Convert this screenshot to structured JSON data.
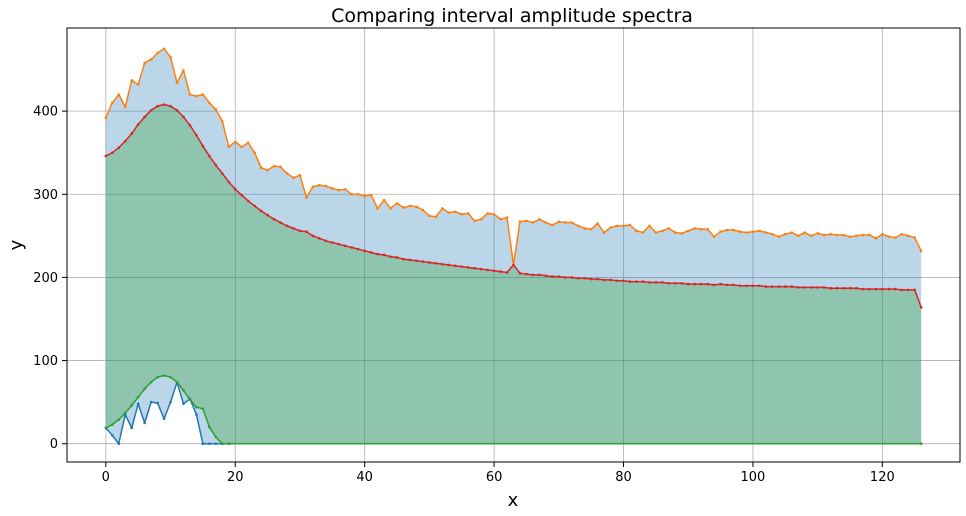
{
  "chart_data": {
    "type": "area",
    "title": "Comparing interval amplitude spectra",
    "xlabel": "x",
    "ylabel": "y",
    "xlim": [
      -6,
      132
    ],
    "ylim": [
      -22,
      500
    ],
    "xticks": [
      0,
      20,
      40,
      60,
      80,
      100,
      120
    ],
    "yticks": [
      0,
      100,
      200,
      300,
      400
    ],
    "grid": true,
    "fills": [
      {
        "between": [
          "orange",
          "blue"
        ],
        "color": "#1f77b4",
        "alpha": 0.3
      },
      {
        "between": [
          "red",
          "green"
        ],
        "color": "#2ca02c",
        "alpha": 0.3
      }
    ],
    "series": [
      {
        "color": "#ff7f0e",
        "points": [
          [
            0,
            392
          ],
          [
            1,
            410
          ],
          [
            2,
            420
          ],
          [
            3,
            405
          ],
          [
            4,
            437
          ],
          [
            5,
            432
          ],
          [
            6,
            458
          ],
          [
            7,
            462
          ],
          [
            8,
            470
          ],
          [
            9,
            475
          ],
          [
            10,
            465
          ],
          [
            11,
            434
          ],
          [
            12,
            449
          ],
          [
            13,
            420
          ],
          [
            14,
            418
          ],
          [
            15,
            420
          ],
          [
            16,
            410
          ],
          [
            17,
            402
          ],
          [
            18,
            388
          ],
          [
            19,
            357
          ],
          [
            20,
            363
          ],
          [
            21,
            357
          ],
          [
            22,
            362
          ],
          [
            23,
            350
          ],
          [
            24,
            332
          ],
          [
            25,
            329
          ],
          [
            26,
            334
          ],
          [
            27,
            333
          ],
          [
            28,
            325
          ],
          [
            29,
            320
          ],
          [
            30,
            323
          ],
          [
            31,
            296
          ],
          [
            32,
            309
          ],
          [
            33,
            311
          ],
          [
            34,
            310
          ],
          [
            35,
            307
          ],
          [
            36,
            305
          ],
          [
            37,
            306
          ],
          [
            38,
            300
          ],
          [
            39,
            300
          ],
          [
            40,
            298
          ],
          [
            41,
            299
          ],
          [
            42,
            283
          ],
          [
            43,
            293
          ],
          [
            44,
            283
          ],
          [
            45,
            289
          ],
          [
            46,
            284
          ],
          [
            47,
            286
          ],
          [
            48,
            285
          ],
          [
            49,
            281
          ],
          [
            50,
            274
          ],
          [
            51,
            273
          ],
          [
            52,
            283
          ],
          [
            53,
            278
          ],
          [
            54,
            279
          ],
          [
            55,
            276
          ],
          [
            56,
            277
          ],
          [
            57,
            268
          ],
          [
            58,
            270
          ],
          [
            59,
            277
          ],
          [
            60,
            276
          ],
          [
            61,
            270
          ],
          [
            62,
            272
          ],
          [
            63,
            215
          ],
          [
            64,
            267
          ],
          [
            65,
            268
          ],
          [
            66,
            266
          ],
          [
            67,
            270
          ],
          [
            68,
            266
          ],
          [
            69,
            263
          ],
          [
            70,
            267
          ],
          [
            71,
            266
          ],
          [
            72,
            266
          ],
          [
            73,
            262
          ],
          [
            74,
            259
          ],
          [
            75,
            258
          ],
          [
            76,
            265
          ],
          [
            77,
            254
          ],
          [
            78,
            260
          ],
          [
            79,
            262
          ],
          [
            80,
            262
          ],
          [
            81,
            263
          ],
          [
            82,
            256
          ],
          [
            83,
            254
          ],
          [
            84,
            262
          ],
          [
            85,
            254
          ],
          [
            86,
            256
          ],
          [
            87,
            259
          ],
          [
            88,
            254
          ],
          [
            89,
            253
          ],
          [
            90,
            256
          ],
          [
            91,
            259
          ],
          [
            92,
            258
          ],
          [
            93,
            258
          ],
          [
            94,
            249
          ],
          [
            95,
            255
          ],
          [
            96,
            257
          ],
          [
            97,
            257
          ],
          [
            98,
            255
          ],
          [
            99,
            254
          ],
          [
            100,
            255
          ],
          [
            101,
            256
          ],
          [
            102,
            254
          ],
          [
            103,
            252
          ],
          [
            104,
            249
          ],
          [
            105,
            252
          ],
          [
            106,
            254
          ],
          [
            107,
            250
          ],
          [
            108,
            254
          ],
          [
            109,
            250
          ],
          [
            110,
            253
          ],
          [
            111,
            251
          ],
          [
            112,
            252
          ],
          [
            113,
            251
          ],
          [
            114,
            251
          ],
          [
            115,
            249
          ],
          [
            116,
            250
          ],
          [
            117,
            251
          ],
          [
            118,
            251
          ],
          [
            119,
            247
          ],
          [
            120,
            252
          ],
          [
            121,
            249
          ],
          [
            122,
            248
          ],
          [
            123,
            252
          ],
          [
            124,
            250
          ],
          [
            125,
            248
          ],
          [
            126,
            232
          ]
        ]
      },
      {
        "color": "#d62728",
        "points": [
          [
            0,
            346
          ],
          [
            1,
            350
          ],
          [
            2,
            356
          ],
          [
            3,
            364
          ],
          [
            4,
            373
          ],
          [
            5,
            384
          ],
          [
            6,
            393
          ],
          [
            7,
            401
          ],
          [
            8,
            406
          ],
          [
            9,
            408
          ],
          [
            10,
            406
          ],
          [
            11,
            401
          ],
          [
            12,
            393
          ],
          [
            13,
            383
          ],
          [
            14,
            371
          ],
          [
            15,
            358
          ],
          [
            16,
            346
          ],
          [
            17,
            335
          ],
          [
            18,
            325
          ],
          [
            19,
            315
          ],
          [
            20,
            306
          ],
          [
            21,
            299
          ],
          [
            22,
            292
          ],
          [
            23,
            286
          ],
          [
            24,
            280
          ],
          [
            25,
            275
          ],
          [
            26,
            270
          ],
          [
            27,
            266
          ],
          [
            28,
            262
          ],
          [
            29,
            259
          ],
          [
            30,
            256
          ],
          [
            31,
            255
          ],
          [
            32,
            250
          ],
          [
            33,
            247
          ],
          [
            34,
            244
          ],
          [
            35,
            242
          ],
          [
            36,
            240
          ],
          [
            37,
            238
          ],
          [
            38,
            236
          ],
          [
            39,
            234
          ],
          [
            40,
            232
          ],
          [
            41,
            230
          ],
          [
            42,
            228
          ],
          [
            43,
            227
          ],
          [
            44,
            225
          ],
          [
            45,
            224
          ],
          [
            46,
            222
          ],
          [
            47,
            221
          ],
          [
            48,
            220
          ],
          [
            49,
            219
          ],
          [
            50,
            218
          ],
          [
            51,
            217
          ],
          [
            52,
            216
          ],
          [
            53,
            215
          ],
          [
            54,
            214
          ],
          [
            55,
            213
          ],
          [
            56,
            212
          ],
          [
            57,
            211
          ],
          [
            58,
            210
          ],
          [
            59,
            209
          ],
          [
            60,
            208
          ],
          [
            61,
            207
          ],
          [
            62,
            206
          ],
          [
            63,
            215
          ],
          [
            64,
            205
          ],
          [
            65,
            204
          ],
          [
            66,
            203
          ],
          [
            67,
            203
          ],
          [
            68,
            202
          ],
          [
            69,
            201
          ],
          [
            70,
            201
          ],
          [
            71,
            200
          ],
          [
            72,
            200
          ],
          [
            73,
            199
          ],
          [
            74,
            199
          ],
          [
            75,
            198
          ],
          [
            76,
            198
          ],
          [
            77,
            197
          ],
          [
            78,
            197
          ],
          [
            79,
            196
          ],
          [
            80,
            196
          ],
          [
            81,
            195
          ],
          [
            82,
            195
          ],
          [
            83,
            195
          ],
          [
            84,
            194
          ],
          [
            85,
            194
          ],
          [
            86,
            194
          ],
          [
            87,
            193
          ],
          [
            88,
            193
          ],
          [
            89,
            193
          ],
          [
            90,
            192
          ],
          [
            91,
            192
          ],
          [
            92,
            192
          ],
          [
            93,
            192
          ],
          [
            94,
            191
          ],
          [
            95,
            192
          ],
          [
            96,
            191
          ],
          [
            97,
            191
          ],
          [
            98,
            190
          ],
          [
            99,
            190
          ],
          [
            100,
            190
          ],
          [
            101,
            190
          ],
          [
            102,
            189
          ],
          [
            103,
            189
          ],
          [
            104,
            189
          ],
          [
            105,
            189
          ],
          [
            106,
            189
          ],
          [
            107,
            188
          ],
          [
            108,
            188
          ],
          [
            109,
            188
          ],
          [
            110,
            188
          ],
          [
            111,
            188
          ],
          [
            112,
            187
          ],
          [
            113,
            187
          ],
          [
            114,
            187
          ],
          [
            115,
            187
          ],
          [
            116,
            187
          ],
          [
            117,
            186
          ],
          [
            118,
            186
          ],
          [
            119,
            186
          ],
          [
            120,
            186
          ],
          [
            121,
            186
          ],
          [
            122,
            186
          ],
          [
            123,
            185
          ],
          [
            124,
            185
          ],
          [
            125,
            185
          ],
          [
            126,
            164
          ]
        ]
      },
      {
        "color": "#1f77b4",
        "points": [
          [
            0,
            19
          ],
          [
            1,
            10
          ],
          [
            2,
            0
          ],
          [
            3,
            35
          ],
          [
            4,
            19
          ],
          [
            5,
            48
          ],
          [
            6,
            25
          ],
          [
            7,
            50
          ],
          [
            8,
            49
          ],
          [
            9,
            30
          ],
          [
            10,
            50
          ],
          [
            11,
            74
          ],
          [
            12,
            48
          ],
          [
            13,
            54
          ],
          [
            14,
            35
          ],
          [
            15,
            0
          ],
          [
            16,
            0
          ],
          [
            17,
            0
          ],
          [
            18,
            0
          ],
          [
            19,
            0
          ],
          [
            126,
            0
          ]
        ]
      },
      {
        "color": "#2ca02c",
        "points": [
          [
            0,
            19
          ],
          [
            1,
            23
          ],
          [
            2,
            29
          ],
          [
            3,
            37
          ],
          [
            4,
            46
          ],
          [
            5,
            56
          ],
          [
            6,
            66
          ],
          [
            7,
            74
          ],
          [
            8,
            80
          ],
          [
            9,
            82
          ],
          [
            10,
            80
          ],
          [
            11,
            74
          ],
          [
            12,
            64
          ],
          [
            13,
            53
          ],
          [
            14,
            44
          ],
          [
            15,
            42
          ],
          [
            16,
            20
          ],
          [
            17,
            8
          ],
          [
            18,
            0
          ],
          [
            19,
            0
          ],
          [
            126,
            0
          ]
        ]
      }
    ]
  }
}
